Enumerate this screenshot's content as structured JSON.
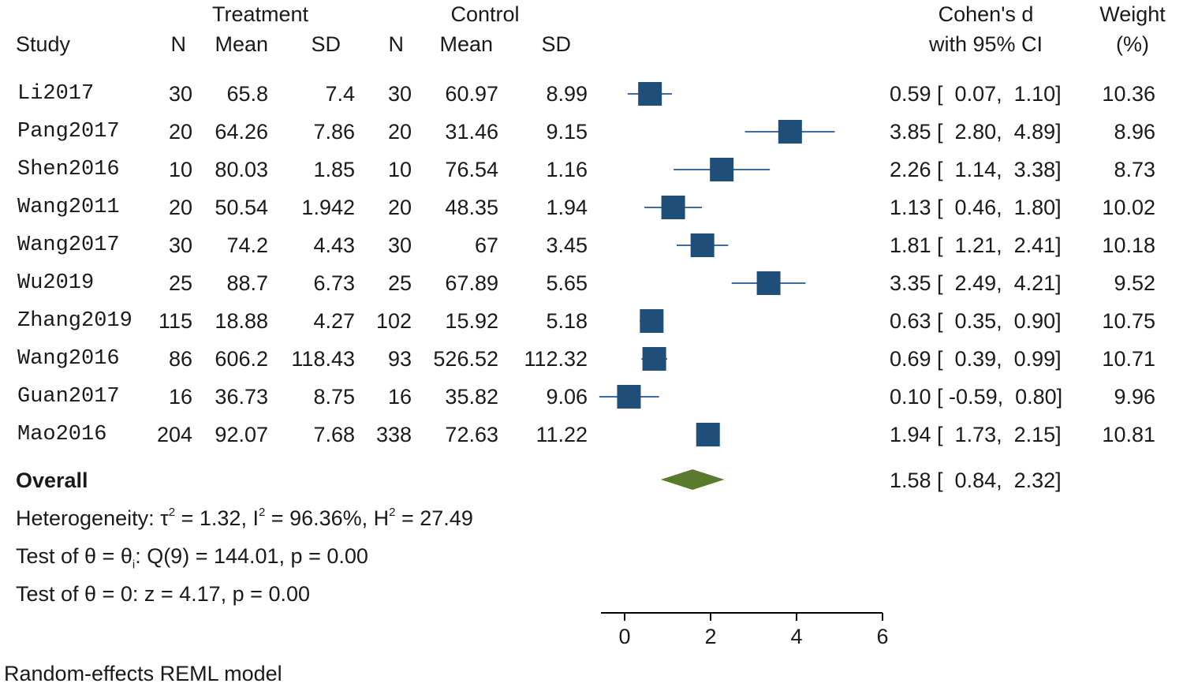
{
  "header": {
    "group1": "Treatment",
    "group2": "Control",
    "study": "Study",
    "n": "N",
    "mean": "Mean",
    "sd": "SD",
    "effect_line1": "Cohen's d",
    "effect_line2": "with 95% CI",
    "weight_line1": "Weight",
    "weight_line2": "(%)"
  },
  "rows": [
    {
      "study": "Li2017",
      "n1": "30",
      "mean1": "65.8",
      "sd1": "7.4",
      "n2": "30",
      "mean2": "60.97",
      "sd2": "8.99",
      "ci": "0.59 [  0.07,  1.10]",
      "weight": "10.36"
    },
    {
      "study": "Pang2017",
      "n1": "20",
      "mean1": "64.26",
      "sd1": "7.86",
      "n2": "20",
      "mean2": "31.46",
      "sd2": "9.15",
      "ci": "3.85 [  2.80,  4.89]",
      "weight": "8.96"
    },
    {
      "study": "Shen2016",
      "n1": "10",
      "mean1": "80.03",
      "sd1": "1.85",
      "n2": "10",
      "mean2": "76.54",
      "sd2": "1.16",
      "ci": "2.26 [  1.14,  3.38]",
      "weight": "8.73"
    },
    {
      "study": "Wang2011",
      "n1": "20",
      "mean1": "50.54",
      "sd1": "1.942",
      "n2": "20",
      "mean2": "48.35",
      "sd2": "1.94",
      "ci": "1.13 [  0.46,  1.80]",
      "weight": "10.02"
    },
    {
      "study": "Wang2017",
      "n1": "30",
      "mean1": "74.2",
      "sd1": "4.43",
      "n2": "30",
      "mean2": "67",
      "sd2": "3.45",
      "ci": "1.81 [  1.21,  2.41]",
      "weight": "10.18"
    },
    {
      "study": "Wu2019",
      "n1": "25",
      "mean1": "88.7",
      "sd1": "6.73",
      "n2": "25",
      "mean2": "67.89",
      "sd2": "5.65",
      "ci": "3.35 [  2.49,  4.21]",
      "weight": "9.52"
    },
    {
      "study": "Zhang2019",
      "n1": "115",
      "mean1": "18.88",
      "sd1": "4.27",
      "n2": "102",
      "mean2": "15.92",
      "sd2": "5.18",
      "ci": "0.63 [  0.35,  0.90]",
      "weight": "10.75"
    },
    {
      "study": "Wang2016",
      "n1": "86",
      "mean1": "606.2",
      "sd1": "118.43",
      "n2": "93",
      "mean2": "526.52",
      "sd2": "112.32",
      "ci": "0.69 [  0.39,  0.99]",
      "weight": "10.71"
    },
    {
      "study": "Guan2017",
      "n1": "16",
      "mean1": "36.73",
      "sd1": "8.75",
      "n2": "16",
      "mean2": "35.82",
      "sd2": "9.06",
      "ci": "0.10 [ -0.59,  0.80]",
      "weight": "9.96"
    },
    {
      "study": "Mao2016",
      "n1": "204",
      "mean1": "92.07",
      "sd1": "7.68",
      "n2": "338",
      "mean2": "72.63",
      "sd2": "11.22",
      "ci": "1.94 [  1.73,  2.15]",
      "weight": "10.81"
    }
  ],
  "overall": {
    "label": "Overall",
    "ci": "1.58 [  0.84,  2.32]"
  },
  "stats": {
    "het_prefix": "Heterogeneity: τ",
    "het_tau": " = 1.32, I",
    "het_i": " = 96.36%, H",
    "het_h": " = 27.49",
    "sup": "2",
    "q_prefix": "Test of θ = θ",
    "q_sub": "i",
    "q_rest": ": Q(9) = 144.01, p = 0.00",
    "z_line": "Test of θ = 0: z = 4.17, p = 0.00"
  },
  "footnote": "Random-effects REML model",
  "chart_data": {
    "type": "forest",
    "effect_label": "Cohen's d",
    "xlim": [
      0,
      6
    ],
    "xticks": [
      0,
      2,
      4,
      6
    ],
    "studies": [
      {
        "name": "Li2017",
        "d": 0.59,
        "lo": 0.07,
        "hi": 1.1,
        "weight": 10.36
      },
      {
        "name": "Pang2017",
        "d": 3.85,
        "lo": 2.8,
        "hi": 4.89,
        "weight": 8.96
      },
      {
        "name": "Shen2016",
        "d": 2.26,
        "lo": 1.14,
        "hi": 3.38,
        "weight": 8.73
      },
      {
        "name": "Wang2011",
        "d": 1.13,
        "lo": 0.46,
        "hi": 1.8,
        "weight": 10.02
      },
      {
        "name": "Wang2017",
        "d": 1.81,
        "lo": 1.21,
        "hi": 2.41,
        "weight": 10.18
      },
      {
        "name": "Wu2019",
        "d": 3.35,
        "lo": 2.49,
        "hi": 4.21,
        "weight": 9.52
      },
      {
        "name": "Zhang2019",
        "d": 0.63,
        "lo": 0.35,
        "hi": 0.9,
        "weight": 10.75
      },
      {
        "name": "Wang2016",
        "d": 0.69,
        "lo": 0.39,
        "hi": 0.99,
        "weight": 10.71
      },
      {
        "name": "Guan2017",
        "d": 0.1,
        "lo": -0.59,
        "hi": 0.8,
        "weight": 9.96
      },
      {
        "name": "Mao2016",
        "d": 1.94,
        "lo": 1.73,
        "hi": 2.15,
        "weight": 10.81
      }
    ],
    "overall": {
      "d": 1.58,
      "lo": 0.84,
      "hi": 2.32
    },
    "colors": {
      "study": "#1f4e79",
      "ci": "#3b6e9e",
      "overall": "#5a7a2e",
      "axis": "#000000"
    }
  }
}
